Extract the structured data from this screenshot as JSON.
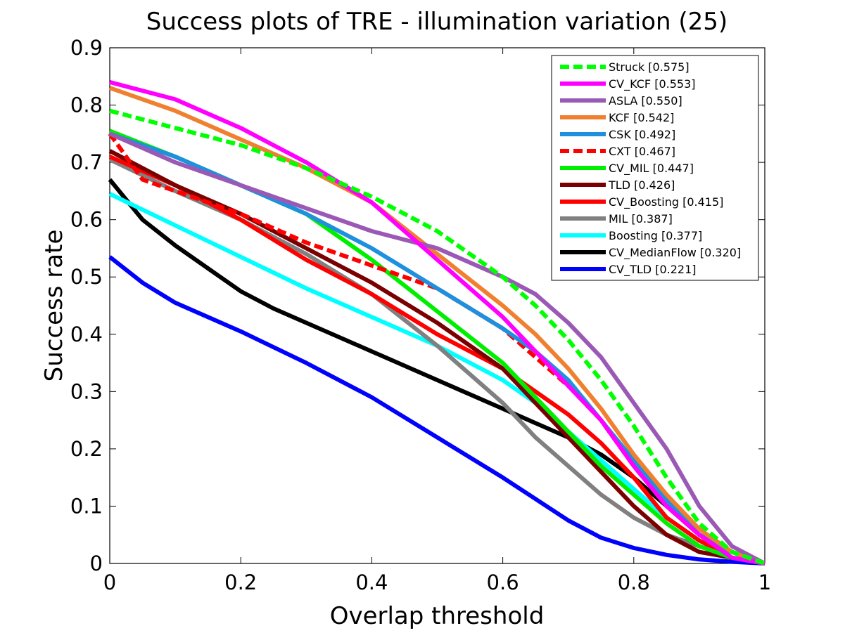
{
  "chart_data": {
    "type": "line",
    "title": "Success plots of TRE - illumination variation (25)",
    "xlabel": "Overlap threshold",
    "ylabel": "Success rate",
    "xlim": [
      0,
      1
    ],
    "ylim": [
      0,
      0.9
    ],
    "xticks": [
      "0",
      "0.2",
      "0.4",
      "0.6",
      "0.8",
      "1"
    ],
    "xtick_values": [
      0,
      0.2,
      0.4,
      0.6,
      0.8,
      1
    ],
    "yticks": [
      "0",
      "0.1",
      "0.2",
      "0.3",
      "0.4",
      "0.5",
      "0.6",
      "0.7",
      "0.8",
      "0.9"
    ],
    "ytick_values": [
      0,
      0.1,
      0.2,
      0.3,
      0.4,
      0.5,
      0.6,
      0.7,
      0.8,
      0.9
    ],
    "grid": false,
    "legend_position": "top-right",
    "series": [
      {
        "name": "Struck [0.575]",
        "color": "#00ff00",
        "dashed": true,
        "x": [
          0,
          0.1,
          0.2,
          0.3,
          0.4,
          0.5,
          0.6,
          0.65,
          0.7,
          0.75,
          0.8,
          0.85,
          0.9,
          0.95,
          1
        ],
        "y": [
          0.79,
          0.76,
          0.73,
          0.69,
          0.64,
          0.58,
          0.5,
          0.45,
          0.39,
          0.32,
          0.24,
          0.15,
          0.07,
          0.02,
          0.0
        ]
      },
      {
        "name": "CV_KCF [0.553]",
        "color": "#ff00ff",
        "dashed": false,
        "x": [
          0,
          0.1,
          0.2,
          0.3,
          0.4,
          0.5,
          0.6,
          0.65,
          0.7,
          0.75,
          0.8,
          0.85,
          0.9,
          0.95,
          1
        ],
        "y": [
          0.84,
          0.81,
          0.76,
          0.7,
          0.63,
          0.53,
          0.43,
          0.37,
          0.31,
          0.25,
          0.17,
          0.1,
          0.05,
          0.01,
          0.0
        ]
      },
      {
        "name": "ASLA [0.550]",
        "color": "#9b59b6",
        "dashed": false,
        "x": [
          0,
          0.1,
          0.2,
          0.3,
          0.4,
          0.5,
          0.6,
          0.65,
          0.7,
          0.75,
          0.8,
          0.85,
          0.9,
          0.95,
          1
        ],
        "y": [
          0.75,
          0.7,
          0.66,
          0.62,
          0.58,
          0.55,
          0.5,
          0.47,
          0.42,
          0.36,
          0.28,
          0.2,
          0.1,
          0.03,
          0.0
        ]
      },
      {
        "name": "KCF [0.542]",
        "color": "#f08030",
        "dashed": false,
        "x": [
          0,
          0.1,
          0.2,
          0.3,
          0.4,
          0.5,
          0.6,
          0.65,
          0.7,
          0.75,
          0.8,
          0.85,
          0.9,
          0.95,
          1
        ],
        "y": [
          0.83,
          0.79,
          0.74,
          0.69,
          0.63,
          0.54,
          0.45,
          0.4,
          0.34,
          0.27,
          0.19,
          0.12,
          0.06,
          0.02,
          0.0
        ]
      },
      {
        "name": "CSK [0.492]",
        "color": "#1e90dd",
        "dashed": false,
        "x": [
          0,
          0.1,
          0.2,
          0.3,
          0.4,
          0.5,
          0.6,
          0.65,
          0.7,
          0.75,
          0.8,
          0.85,
          0.9,
          0.95,
          1
        ],
        "y": [
          0.75,
          0.71,
          0.66,
          0.61,
          0.55,
          0.48,
          0.41,
          0.37,
          0.32,
          0.25,
          0.18,
          0.11,
          0.05,
          0.02,
          0.0
        ]
      },
      {
        "name": "CXT [0.467]",
        "color": "#ff0000",
        "dashed": true,
        "x": [
          0,
          0.05,
          0.1,
          0.2,
          0.3,
          0.4,
          0.5,
          0.6,
          0.65,
          0.7,
          0.75,
          0.8,
          0.85,
          0.9,
          0.95,
          1
        ],
        "y": [
          0.75,
          0.67,
          0.65,
          0.61,
          0.56,
          0.52,
          0.48,
          0.41,
          0.36,
          0.31,
          0.25,
          0.17,
          0.1,
          0.05,
          0.02,
          0.0
        ]
      },
      {
        "name": "CV_MIL [0.447]",
        "color": "#00ee00",
        "dashed": false,
        "x": [
          0,
          0.1,
          0.2,
          0.3,
          0.4,
          0.5,
          0.6,
          0.65,
          0.7,
          0.75,
          0.8,
          0.85,
          0.9,
          0.95,
          1
        ],
        "y": [
          0.755,
          0.71,
          0.66,
          0.61,
          0.53,
          0.44,
          0.35,
          0.29,
          0.23,
          0.17,
          0.12,
          0.07,
          0.03,
          0.01,
          0.0
        ]
      },
      {
        "name": "TLD [0.426]",
        "color": "#7a0000",
        "dashed": false,
        "x": [
          0,
          0.1,
          0.2,
          0.3,
          0.4,
          0.5,
          0.6,
          0.65,
          0.7,
          0.75,
          0.8,
          0.85,
          0.9,
          0.95,
          1
        ],
        "y": [
          0.72,
          0.66,
          0.61,
          0.55,
          0.49,
          0.42,
          0.34,
          0.28,
          0.22,
          0.16,
          0.1,
          0.05,
          0.02,
          0.01,
          0.0
        ]
      },
      {
        "name": "CV_Boosting [0.415]",
        "color": "#ff0000",
        "dashed": false,
        "x": [
          0,
          0.1,
          0.2,
          0.3,
          0.4,
          0.5,
          0.6,
          0.65,
          0.7,
          0.75,
          0.8,
          0.85,
          0.9,
          0.95,
          1
        ],
        "y": [
          0.71,
          0.66,
          0.6,
          0.53,
          0.47,
          0.4,
          0.34,
          0.3,
          0.26,
          0.21,
          0.15,
          0.08,
          0.04,
          0.01,
          0.0
        ]
      },
      {
        "name": "MIL [0.387]",
        "color": "#808080",
        "dashed": false,
        "x": [
          0,
          0.1,
          0.2,
          0.3,
          0.4,
          0.5,
          0.6,
          0.65,
          0.7,
          0.75,
          0.8,
          0.85,
          0.9,
          0.95,
          1
        ],
        "y": [
          0.705,
          0.65,
          0.6,
          0.54,
          0.47,
          0.38,
          0.28,
          0.22,
          0.17,
          0.12,
          0.08,
          0.05,
          0.03,
          0.01,
          0.0
        ]
      },
      {
        "name": "Boosting [0.377]",
        "color": "#00ffff",
        "dashed": false,
        "x": [
          0,
          0.1,
          0.2,
          0.3,
          0.4,
          0.5,
          0.6,
          0.65,
          0.7,
          0.75,
          0.8,
          0.85,
          0.9,
          0.95,
          1
        ],
        "y": [
          0.645,
          0.59,
          0.535,
          0.48,
          0.43,
          0.38,
          0.32,
          0.28,
          0.23,
          0.18,
          0.13,
          0.08,
          0.04,
          0.01,
          0.0
        ]
      },
      {
        "name": "CV_MedianFlow [0.320]",
        "color": "#000000",
        "dashed": false,
        "x": [
          0,
          0.05,
          0.1,
          0.15,
          0.2,
          0.25,
          0.3,
          0.4,
          0.5,
          0.6,
          0.65,
          0.7,
          0.75,
          0.8,
          0.85,
          0.9,
          0.95,
          1
        ],
        "y": [
          0.67,
          0.6,
          0.555,
          0.515,
          0.475,
          0.445,
          0.42,
          0.37,
          0.32,
          0.27,
          0.245,
          0.22,
          0.19,
          0.15,
          0.1,
          0.05,
          0.02,
          0.0
        ]
      },
      {
        "name": "CV_TLD [0.221]",
        "color": "#0000ff",
        "dashed": false,
        "x": [
          0,
          0.05,
          0.1,
          0.2,
          0.3,
          0.4,
          0.5,
          0.6,
          0.7,
          0.75,
          0.8,
          0.85,
          0.9,
          0.95,
          1
        ],
        "y": [
          0.535,
          0.49,
          0.455,
          0.405,
          0.35,
          0.29,
          0.22,
          0.15,
          0.075,
          0.045,
          0.027,
          0.015,
          0.007,
          0.003,
          0.0
        ]
      }
    ]
  }
}
